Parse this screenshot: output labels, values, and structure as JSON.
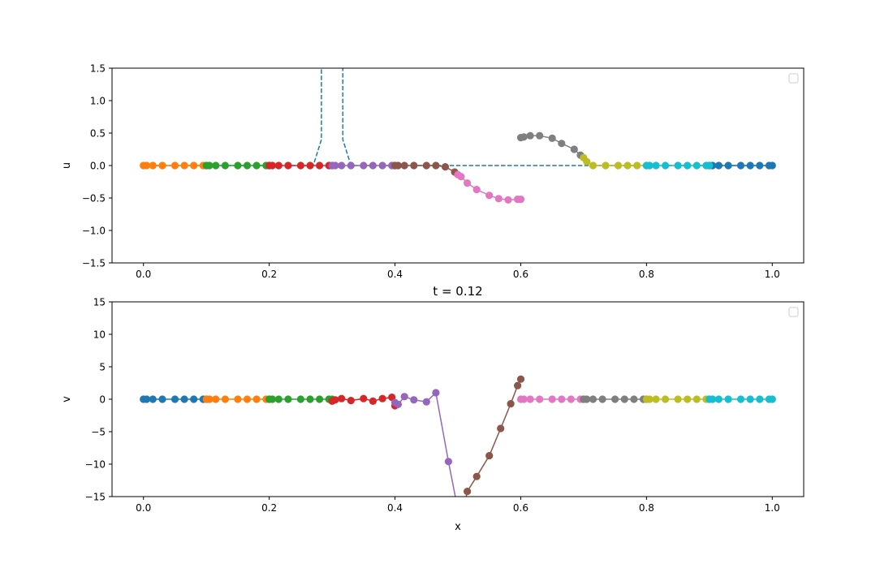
{
  "chart_data": [
    {
      "type": "line",
      "title": "",
      "xlabel": "",
      "ylabel": "u",
      "xlim": [
        -0.05,
        1.05
      ],
      "ylim": [
        -1.5,
        1.5
      ],
      "xticks": [
        0.0,
        0.2,
        0.4,
        0.6,
        0.8,
        1.0
      ],
      "xtick_labels": [
        "0.0",
        "0.2",
        "0.4",
        "0.6",
        "0.8",
        "1.0"
      ],
      "yticks": [
        -1.5,
        -1.0,
        -0.5,
        0.0,
        0.5,
        1.0,
        1.5
      ],
      "ytick_labels": [
        "−1.5",
        "−1.0",
        "−0.5",
        "0.0",
        "0.5",
        "1.0",
        "1.5"
      ],
      "grid": false,
      "legend": "top-right (empty)",
      "reference": {
        "style": "dashed",
        "color": "#1f77b4",
        "x": [
          0.0,
          0.27,
          0.283,
          0.283,
          0.317,
          0.317,
          0.33,
          0.47,
          0.49,
          0.7,
          0.72,
          1.0
        ],
        "y": [
          0.0,
          0.0,
          0.4,
          1.6,
          1.6,
          0.4,
          0.0,
          0.0,
          0.0,
          0.0,
          0.0,
          0.0
        ]
      },
      "series": [
        {
          "color": "#1f77b4",
          "x": [
            0.9,
            0.905,
            0.915,
            0.93,
            0.95,
            0.965,
            0.98,
            0.995,
            1.0
          ],
          "y": [
            0,
            0,
            0,
            0,
            0,
            0,
            0,
            0,
            0
          ]
        },
        {
          "color": "#ff7f0e",
          "x": [
            0.0,
            0.005,
            0.015,
            0.03,
            0.05,
            0.065,
            0.08,
            0.095,
            0.1
          ],
          "y": [
            0,
            0,
            0,
            0,
            0,
            0,
            0,
            0,
            0
          ]
        },
        {
          "color": "#2ca02c",
          "x": [
            0.1,
            0.105,
            0.115,
            0.13,
            0.15,
            0.165,
            0.18,
            0.195,
            0.2
          ],
          "y": [
            0,
            0,
            0,
            0,
            0,
            0,
            0,
            0,
            0
          ]
        },
        {
          "color": "#d62728",
          "x": [
            0.2,
            0.205,
            0.215,
            0.23,
            0.25,
            0.265,
            0.28,
            0.295,
            0.3
          ],
          "y": [
            0,
            0,
            0,
            0,
            0,
            0,
            0,
            0,
            0
          ]
        },
        {
          "color": "#9467bd",
          "x": [
            0.3,
            0.305,
            0.315,
            0.33,
            0.35,
            0.365,
            0.38,
            0.395,
            0.4
          ],
          "y": [
            0,
            0,
            0,
            0,
            0,
            0,
            0,
            0,
            0
          ]
        },
        {
          "color": "#8c564b",
          "x": [
            0.4,
            0.405,
            0.415,
            0.43,
            0.45,
            0.465,
            0.48,
            0.495
          ],
          "y": [
            0,
            0,
            0,
            0,
            0,
            0,
            -0.02,
            -0.1
          ]
        },
        {
          "color": "#e377c2",
          "x": [
            0.5,
            0.505,
            0.515,
            0.53,
            0.55,
            0.565,
            0.58,
            0.595,
            0.6
          ],
          "y": [
            -0.14,
            -0.17,
            -0.27,
            -0.37,
            -0.46,
            -0.51,
            -0.53,
            -0.52,
            -0.52
          ]
        },
        {
          "color": "#7f7f7f",
          "x": [
            0.6,
            0.605,
            0.615,
            0.63,
            0.65,
            0.665,
            0.685,
            0.695
          ],
          "y": [
            0.43,
            0.44,
            0.46,
            0.46,
            0.42,
            0.34,
            0.25,
            0.16
          ]
        },
        {
          "color": "#bcbd22",
          "x": [
            0.7,
            0.705,
            0.715,
            0.735,
            0.755,
            0.77,
            0.785,
            0.8
          ],
          "y": [
            0.12,
            0.06,
            0,
            0,
            0,
            0,
            0,
            0
          ]
        },
        {
          "color": "#17becf",
          "x": [
            0.8,
            0.805,
            0.815,
            0.83,
            0.85,
            0.865,
            0.88,
            0.895,
            0.9
          ],
          "y": [
            0,
            0,
            0,
            0,
            0,
            0,
            0,
            0,
            0
          ]
        }
      ]
    },
    {
      "type": "line",
      "title": "t = 0.12",
      "xlabel": "x",
      "ylabel": "v",
      "xlim": [
        -0.05,
        1.05
      ],
      "ylim": [
        -15,
        15
      ],
      "xticks": [
        0.0,
        0.2,
        0.4,
        0.6,
        0.8,
        1.0
      ],
      "xtick_labels": [
        "0.0",
        "0.2",
        "0.4",
        "0.6",
        "0.8",
        "1.0"
      ],
      "yticks": [
        -15,
        -10,
        -5,
        0,
        5,
        10,
        15
      ],
      "ytick_labels": [
        "−15",
        "−10",
        "−5",
        "0",
        "5",
        "10",
        "15"
      ],
      "grid": false,
      "legend": "top-right (empty)",
      "series": [
        {
          "color": "#1f77b4",
          "x": [
            0.0,
            0.005,
            0.015,
            0.03,
            0.05,
            0.065,
            0.08,
            0.095,
            0.1
          ],
          "y": [
            0,
            0,
            0,
            0,
            0,
            0,
            0,
            0,
            0
          ]
        },
        {
          "color": "#ff7f0e",
          "x": [
            0.1,
            0.105,
            0.115,
            0.13,
            0.15,
            0.165,
            0.18,
            0.195,
            0.2
          ],
          "y": [
            0,
            0,
            0,
            0,
            0,
            0,
            0,
            0,
            0
          ]
        },
        {
          "color": "#2ca02c",
          "x": [
            0.2,
            0.205,
            0.215,
            0.23,
            0.25,
            0.265,
            0.28,
            0.295,
            0.3
          ],
          "y": [
            0,
            0,
            0,
            0,
            0,
            0,
            0,
            0,
            0
          ]
        },
        {
          "color": "#d62728",
          "x": [
            0.3,
            0.305,
            0.315,
            0.33,
            0.35,
            0.365,
            0.38,
            0.395,
            0.4
          ],
          "y": [
            -0.3,
            -0.1,
            0.1,
            -0.2,
            0.1,
            -0.3,
            0.1,
            0.3,
            -1.0
          ]
        },
        {
          "color": "#9467bd",
          "x": [
            0.4,
            0.405,
            0.415,
            0.43,
            0.45,
            0.465,
            0.485,
            0.5
          ],
          "y": [
            -0.5,
            -0.8,
            0.4,
            -0.1,
            -0.4,
            1.0,
            -9.6,
            -17.0
          ]
        },
        {
          "color": "#8c564b",
          "x": [
            0.51,
            0.515,
            0.53,
            0.55,
            0.568,
            0.584,
            0.595,
            0.6
          ],
          "y": [
            -16.5,
            -14.2,
            -11.9,
            -8.7,
            -4.5,
            -0.7,
            2.1,
            3.1
          ]
        },
        {
          "color": "#e377c2",
          "x": [
            0.6,
            0.605,
            0.615,
            0.63,
            0.65,
            0.665,
            0.68,
            0.695,
            0.7
          ],
          "y": [
            0,
            0,
            0,
            0,
            0,
            0,
            0,
            0,
            0
          ]
        },
        {
          "color": "#7f7f7f",
          "x": [
            0.7,
            0.705,
            0.715,
            0.73,
            0.75,
            0.765,
            0.78,
            0.795,
            0.8
          ],
          "y": [
            0,
            0,
            0,
            0,
            0,
            0,
            0,
            0,
            0
          ]
        },
        {
          "color": "#bcbd22",
          "x": [
            0.8,
            0.805,
            0.815,
            0.83,
            0.85,
            0.865,
            0.88,
            0.895,
            0.9
          ],
          "y": [
            0,
            0,
            0,
            0,
            0,
            0,
            0,
            0,
            0
          ]
        },
        {
          "color": "#17becf",
          "x": [
            0.9,
            0.905,
            0.915,
            0.93,
            0.95,
            0.965,
            0.98,
            0.995,
            1.0
          ],
          "y": [
            0,
            0,
            0,
            0,
            0,
            0,
            0,
            0,
            0
          ]
        }
      ]
    }
  ]
}
